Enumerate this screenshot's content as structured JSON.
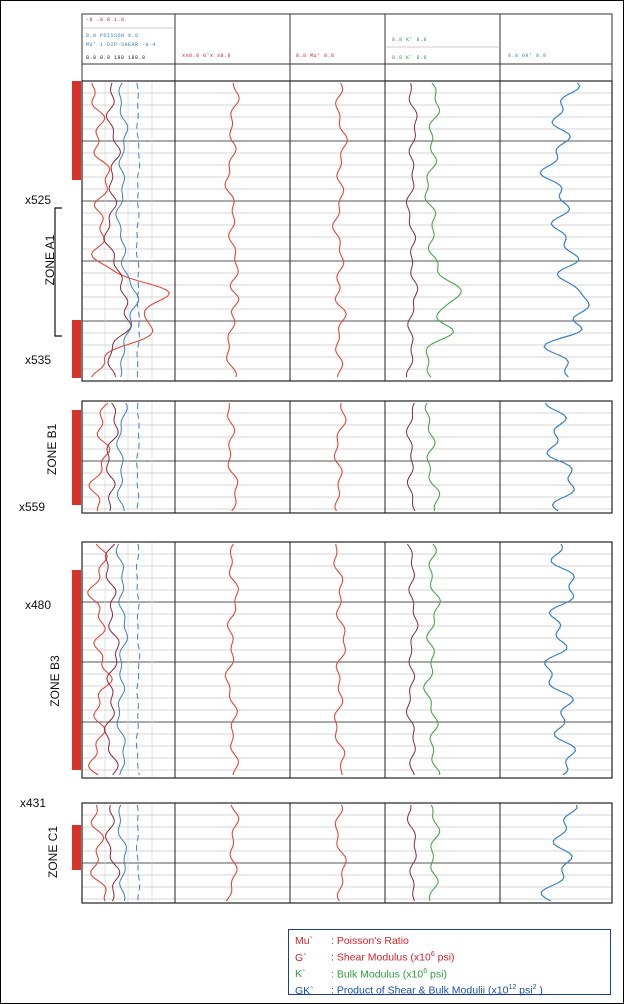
{
  "header": {
    "track1_rows": [
      "-8 .8  8  1.8",
      "8.8 POISSON 8.8",
      "MU' 1-DIP-SHEAR -0-4",
      "8.8  8.8  188  188.8"
    ],
    "track2": "xx8.8  G'x  x8.8",
    "track3": "8.8  Mu'  8.8",
    "track4_rows": [
      "8.8  K'  8.8",
      "8.8  K'  8.8"
    ],
    "track5": "8.8  GK'  8.8"
  },
  "depths": {
    "d1": "x525",
    "d2": "x535",
    "d3": "x559",
    "d4": "x480",
    "d5": "x431"
  },
  "zones": {
    "a1": "ZONE A1",
    "b1": "ZONE B1",
    "b3": "ZONE B3",
    "c1": "ZONE C1"
  },
  "legend": {
    "mu": {
      "label": "Mu`",
      "text": ": Poisson's Ratio",
      "color": "#d8232a"
    },
    "g": {
      "label": "G`",
      "text": ": Shear Modulus (x10",
      "sup": "6",
      "tail": " psi)",
      "color": "#d8232a"
    },
    "k": {
      "label": "K`",
      "text": ": Bulk Modulus (x10",
      "sup": "6",
      "tail": " psi)",
      "color": "#2e9e3e"
    },
    "gk": {
      "label": "GK`",
      "text": ": Product of Shear & Bulk Modulii (x10",
      "sup": "12",
      "mid": " psi",
      "sup2": "2",
      "tail": " )",
      "color": "#1a50b0"
    }
  },
  "colors": {
    "red": "#e04a3a",
    "darkred": "#8a2a3a",
    "green": "#4aa84a",
    "blue": "#3a7fc8",
    "zonebar": "#d8322a"
  }
}
